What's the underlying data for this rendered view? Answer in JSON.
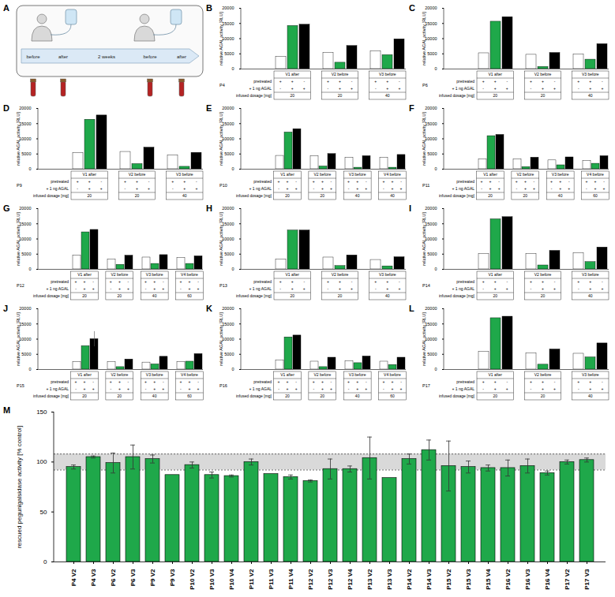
{
  "diagram": {
    "letter": "A",
    "interval": "2 weeks",
    "timepoints": [
      "before",
      "after",
      "before",
      "after"
    ]
  },
  "chart_data": [
    {
      "type": "bar",
      "letter": "B",
      "patient": "P4",
      "y_label": "relative AGAL activity [RLU]",
      "ylim": [
        0,
        20000
      ],
      "yticks": [
        0,
        5000,
        10000,
        15000,
        20000
      ],
      "colors": [
        "#ffffff",
        "#1fa84a",
        "#000000"
      ],
      "row_labels": [
        "pretreated",
        "+ 1 ng AGAL",
        "infused dosage [mg]"
      ],
      "row_cells": [
        [
          "+",
          "+",
          "-"
        ],
        [
          "-",
          "+",
          "+"
        ]
      ],
      "categories": [
        "V1 after",
        "V2 before",
        "V3 before"
      ],
      "dosages": [
        20,
        20,
        40
      ],
      "values": [
        [
          4000,
          14200,
          14600
        ],
        [
          5300,
          2100,
          7600
        ],
        [
          5800,
          4600,
          9800
        ]
      ]
    },
    {
      "type": "bar",
      "letter": "C",
      "patient": "P6",
      "y_label": "relative AGAL activity [RLU]",
      "ylim": [
        0,
        20000
      ],
      "yticks": [
        0,
        5000,
        10000,
        15000,
        20000
      ],
      "colors": [
        "#ffffff",
        "#1fa84a",
        "#000000"
      ],
      "row_labels": [
        "pretreated",
        "+ 1 ng AGAL",
        "infused dosage [mg]"
      ],
      "row_cells": [
        [
          "+",
          "+",
          "-"
        ],
        [
          "-",
          "+",
          "+"
        ]
      ],
      "categories": [
        "V1 after",
        "V2 before",
        "V3 before"
      ],
      "dosages": [
        20,
        20,
        40
      ],
      "values": [
        [
          5200,
          15600,
          17100
        ],
        [
          4700,
          700,
          5300
        ],
        [
          4800,
          3100,
          8200
        ]
      ]
    },
    {
      "type": "bar",
      "letter": "D",
      "patient": "P9",
      "y_label": "relative AGAL activity [RLU]",
      "ylim": [
        0,
        20000
      ],
      "yticks": [
        0,
        5000,
        10000,
        15000,
        20000
      ],
      "colors": [
        "#ffffff",
        "#1fa84a",
        "#000000"
      ],
      "row_labels": [
        "pretreated",
        "+ 1 ng AGAL",
        "infused dosage [mg]"
      ],
      "row_cells": [
        [
          "+",
          "+",
          "-"
        ],
        [
          "-",
          "+",
          "+"
        ]
      ],
      "categories": [
        "V1 after",
        "V2 before",
        "V3 before"
      ],
      "dosages": [
        20,
        20,
        40
      ],
      "values": [
        [
          5300,
          16300,
          17700
        ],
        [
          5700,
          1700,
          7100
        ],
        [
          4500,
          800,
          5400
        ]
      ]
    },
    {
      "type": "bar",
      "letter": "E",
      "patient": "P10",
      "y_label": "relative AGAL activity [RLU]",
      "ylim": [
        0,
        20000
      ],
      "yticks": [
        0,
        5000,
        10000,
        15000,
        20000
      ],
      "colors": [
        "#ffffff",
        "#1fa84a",
        "#000000"
      ],
      "row_labels": [
        "pretreated",
        "+ 1 ng AGAL",
        "infused dosage [mg]"
      ],
      "row_cells": [
        [
          "+",
          "+",
          "-"
        ],
        [
          "-",
          "+",
          "+"
        ]
      ],
      "categories": [
        "V1 after",
        "V2 before",
        "V3 before",
        "V4 before"
      ],
      "dosages": [
        20,
        20,
        40,
        40
      ],
      "values": [
        [
          4400,
          12100,
          13200
        ],
        [
          4300,
          900,
          5000
        ],
        [
          3800,
          500,
          4300
        ],
        [
          3800,
          500,
          4700
        ]
      ]
    },
    {
      "type": "bar",
      "letter": "F",
      "patient": "P11",
      "y_label": "relative AGAL activity [RLU]",
      "ylim": [
        0,
        20000
      ],
      "yticks": [
        0,
        5000,
        10000,
        15000,
        20000
      ],
      "colors": [
        "#ffffff",
        "#1fa84a",
        "#000000"
      ],
      "row_labels": [
        "pretreated",
        "+ 1 ng AGAL",
        "infused dosage [mg]"
      ],
      "row_cells": [
        [
          "+",
          "+",
          "-"
        ],
        [
          "-",
          "+",
          "+"
        ]
      ],
      "categories": [
        "V1 after",
        "V2 before",
        "V3 before",
        "V4 before"
      ],
      "dosages": [
        20,
        20,
        40,
        60
      ],
      "values": [
        [
          3200,
          10900,
          11300
        ],
        [
          3200,
          700,
          3800
        ],
        [
          2900,
          1300,
          3900
        ],
        [
          2700,
          1800,
          4300
        ]
      ]
    },
    {
      "type": "bar",
      "letter": "G",
      "patient": "P12",
      "y_label": "relative AGAL activity [RLU]",
      "ylim": [
        0,
        20000
      ],
      "yticks": [
        0,
        5000,
        10000,
        15000,
        20000
      ],
      "colors": [
        "#ffffff",
        "#1fa84a",
        "#000000"
      ],
      "row_labels": [
        "pretreated",
        "+ 1 ng AGAL",
        "infused dosage [mg]"
      ],
      "row_cells": [
        [
          "+",
          "+",
          "-"
        ],
        [
          "-",
          "+",
          "+"
        ]
      ],
      "categories": [
        "V1 after",
        "V2 before",
        "V3 before",
        "V4 before"
      ],
      "dosages": [
        20,
        20,
        40,
        60
      ],
      "values": [
        [
          4600,
          12200,
          13000
        ],
        [
          3300,
          1500,
          4500
        ],
        [
          3900,
          1800,
          4700
        ],
        [
          3700,
          1800,
          4300
        ]
      ]
    },
    {
      "type": "bar",
      "letter": "H",
      "patient": "P13",
      "y_label": "relative AGAL activity [RLU]",
      "ylim": [
        0,
        20000
      ],
      "yticks": [
        0,
        5000,
        10000,
        15000,
        20000
      ],
      "colors": [
        "#ffffff",
        "#1fa84a",
        "#000000"
      ],
      "row_labels": [
        "pretreated",
        "+ 1 ng AGAL",
        "infused dosage [mg]"
      ],
      "row_cells": [
        [
          "+",
          "+",
          "-"
        ],
        [
          "-",
          "+",
          "+"
        ]
      ],
      "categories": [
        "V1 after",
        "V2 before",
        "V3 before"
      ],
      "dosages": [
        20,
        20,
        40
      ],
      "values": [
        [
          3300,
          12800,
          12800
        ],
        [
          3900,
          1100,
          4600
        ],
        [
          3100,
          1000,
          4000
        ]
      ]
    },
    {
      "type": "bar",
      "letter": "I",
      "patient": "P14",
      "y_label": "relative AGAL activity [RLU]",
      "ylim": [
        0,
        20000
      ],
      "yticks": [
        0,
        5000,
        10000,
        15000,
        20000
      ],
      "colors": [
        "#ffffff",
        "#1fa84a",
        "#000000"
      ],
      "row_labels": [
        "pretreated",
        "+ 1 ng AGAL",
        "infused dosage [mg]"
      ],
      "row_cells": [
        [
          "+",
          "+",
          "-"
        ],
        [
          "-",
          "+",
          "+"
        ]
      ],
      "categories": [
        "V1 after",
        "V2 before",
        "V3 before"
      ],
      "dosages": [
        20,
        20,
        40
      ],
      "values": [
        [
          5100,
          16500,
          17200
        ],
        [
          5000,
          1300,
          6100
        ],
        [
          5300,
          2400,
          7200
        ]
      ]
    },
    {
      "type": "bar",
      "letter": "J",
      "patient": "P15",
      "y_label": "relative AGAL activity [RLU]",
      "ylim": [
        0,
        20000
      ],
      "yticks": [
        0,
        5000,
        10000,
        15000,
        20000
      ],
      "colors": [
        "#ffffff",
        "#1fa84a",
        "#000000"
      ],
      "row_labels": [
        "pretreated",
        "+ 1 ng AGAL",
        "infused dosage [mg]"
      ],
      "row_cells": [
        [
          "+",
          "+",
          "-"
        ],
        [
          "-",
          "+",
          "+"
        ]
      ],
      "categories": [
        "V1 after",
        "V2 before",
        "V3 before",
        "V4 before"
      ],
      "dosages": [
        20,
        20,
        40,
        60
      ],
      "values": [
        [
          2500,
          7700,
          10000
        ],
        [
          2400,
          800,
          3300
        ],
        [
          2300,
          1700,
          4200
        ],
        [
          2500,
          2600,
          5100
        ]
      ],
      "errors": [
        [
          0,
          0,
          2500
        ],
        [
          0,
          0,
          0
        ],
        [
          0,
          0,
          0
        ],
        [
          0,
          0,
          0
        ]
      ]
    },
    {
      "type": "bar",
      "letter": "K",
      "patient": "P16",
      "y_label": "relative AGAL activity [RLU]",
      "ylim": [
        0,
        20000
      ],
      "yticks": [
        0,
        5000,
        10000,
        15000,
        20000
      ],
      "colors": [
        "#ffffff",
        "#1fa84a",
        "#000000"
      ],
      "row_labels": [
        "pretreated",
        "+ 1 ng AGAL",
        "infused dosage [mg]"
      ],
      "row_cells": [
        [
          "+",
          "+",
          "-"
        ],
        [
          "-",
          "+",
          "+"
        ]
      ],
      "categories": [
        "V1 after",
        "V2 before",
        "V3 before",
        "V4 before"
      ],
      "dosages": [
        20,
        20,
        40,
        60
      ],
      "values": [
        [
          3000,
          10600,
          11200
        ],
        [
          2600,
          800,
          3900
        ],
        [
          2800,
          2100,
          4300
        ],
        [
          2600,
          1500,
          3900
        ]
      ]
    },
    {
      "type": "bar",
      "letter": "L",
      "patient": "P17",
      "y_label": "relative AGAL activity [RLU]",
      "ylim": [
        0,
        20000
      ],
      "yticks": [
        0,
        5000,
        10000,
        15000,
        20000
      ],
      "colors": [
        "#ffffff",
        "#1fa84a",
        "#000000"
      ],
      "row_labels": [
        "pretreated",
        "+ 1 ng AGAL",
        "infused dosage [mg]"
      ],
      "row_cells": [
        [
          "+",
          "+",
          "-"
        ],
        [
          "-",
          "+",
          "+"
        ]
      ],
      "categories": [
        "V1 after",
        "V2 before",
        "V3 before"
      ],
      "dosages": [
        20,
        20,
        40
      ],
      "values": [
        [
          5800,
          16900,
          17400
        ],
        [
          5400,
          1600,
          6600
        ],
        [
          5200,
          4000,
          8600
        ]
      ]
    },
    {
      "type": "bar",
      "letter": "M",
      "y_label": "rescued pegunigalsidase activity [% control]",
      "ylim": [
        0,
        150
      ],
      "yticks": [
        0,
        50,
        100,
        150
      ],
      "color": "#1fa84a",
      "reference_band": [
        92,
        108
      ],
      "categories": [
        "P4 V2",
        "P4 V3",
        "P6 V2",
        "P6 V3",
        "P9 V2",
        "P9 V3",
        "P10 V2",
        "P10 V3",
        "P10 V4",
        "P11 V2",
        "P11 V3",
        "P11 V4",
        "P12 V2",
        "P12 V3",
        "P12 V4",
        "P13 V2",
        "P13 V3",
        "P14 V2",
        "P14 V3",
        "P15 V2",
        "P15 V3",
        "P15 V4",
        "P16 V2",
        "P16 V3",
        "P16 V4",
        "P17 V2",
        "P17 V3"
      ],
      "values": [
        95,
        105,
        99,
        105,
        103,
        87,
        97,
        87,
        86,
        100,
        88,
        85,
        81,
        93,
        93,
        104,
        84,
        103,
        112,
        96,
        95,
        94,
        94,
        96,
        89,
        100,
        102
      ],
      "errors": [
        2,
        1,
        10,
        12,
        4,
        0,
        3,
        3,
        1,
        3,
        0,
        2,
        1,
        10,
        3,
        21,
        0,
        5,
        10,
        25,
        6,
        3,
        8,
        7,
        2,
        2,
        2
      ]
    }
  ]
}
